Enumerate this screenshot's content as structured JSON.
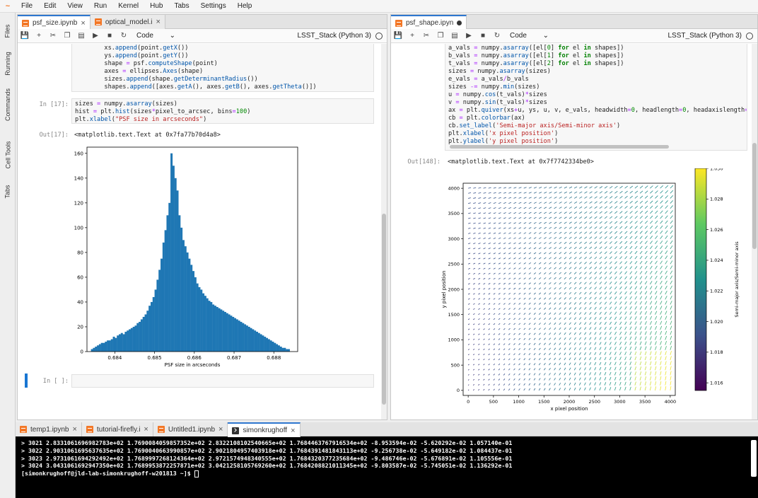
{
  "menubar": {
    "items": [
      "File",
      "Edit",
      "View",
      "Run",
      "Kernel",
      "Hub",
      "Tabs",
      "Settings",
      "Help"
    ]
  },
  "sidebar": {
    "tabs": [
      "Files",
      "Running",
      "Commands",
      "Cell Tools",
      "Tabs"
    ]
  },
  "left_panel": {
    "tabs": [
      {
        "label": "psf_size.ipynb",
        "close": "×"
      },
      {
        "label": "optical_model.i",
        "close": "×"
      }
    ],
    "toolbar": {
      "cell_type": "Code",
      "kernel": "LSST_Stack (Python 3)"
    },
    "cell1_code": [
      "        xs.append(point.getX())",
      "        ys.append(point.getY())",
      "        shape = psf.computeShape(point)",
      "        axes = ellipses.Axes(shape)",
      "        sizes.append(shape.getDeterminantRadius())",
      "        shapes.append([axes.getA(), axes.getB(), axes.getTheta()])"
    ],
    "cell2_prompt": "In [17]:",
    "cell2_code": [
      "sizes = numpy.asarray(sizes)",
      "hist = plt.hist(sizes*pixel_to_arcsec, bins=100)",
      "plt.xlabel(\"PSF size in arcseconds\")"
    ],
    "out2_prompt": "Out[17]:",
    "out2_text": "<matplotlib.text.Text at 0x7fa77b70d4a8>",
    "empty_prompt": "In [ ]:"
  },
  "right_panel": {
    "tabs": [
      {
        "label": "psf_shape.ipyn"
      }
    ],
    "toolbar": {
      "cell_type": "Code",
      "kernel": "LSST_Stack (Python 3)"
    },
    "cell_code": [
      "a_vals = numpy.asarray([el[0] for el in shapes])",
      "b_vals = numpy.asarray([el[1] for el in shapes])",
      "t_vals = numpy.asarray([el[2] for el in shapes])",
      "sizes = numpy.asarray(sizes)",
      "e_vals = a_vals/b_vals",
      "sizes -= numpy.min(sizes)",
      "u = numpy.cos(t_vals)*sizes",
      "v = numpy.sin(t_vals)*sizes",
      "ax = plt.quiver(xs+u, ys, u, v, e_vals, headwidth=0, headlength=0, headaxislength=",
      "cb = plt.colorbar(ax)",
      "cb.set_label('Semi-major axis/Semi-minor axis')",
      "plt.xlabel('x pixel position')",
      "plt.ylabel('y pixel position')"
    ],
    "out_prompt": "Out[148]:",
    "out_text": "<matplotlib.text.Text at 0x7f7742334be0>"
  },
  "terminal": {
    "tabs": [
      {
        "label": "temp1.ipynb",
        "close": "×"
      },
      {
        "label": "tutorial-firefly.i",
        "close": "×"
      },
      {
        "label": "Untitled1.ipynb",
        "close": "×"
      },
      {
        "label": "simonkrughoff",
        "close": "×"
      }
    ],
    "lines": [
      "> 3021 2.8331061696982783e+02 1.7690084059857352e+02 2.8322108102540665e+02 1.7684463767916534e+02 -8.953594e-02 -5.620292e-02 1.057140e-01",
      "> 3022 2.9031061695637635e+02 1.7690040663990857e+02 2.9021804957403918e+02 1.7684391481843113e+02 -9.256738e-02 -5.649182e-02 1.084437e-01",
      "> 3023 2.9731061694292492e+02 1.7689997268124364e+02 2.9721574948340555e+02 1.7684320377235684e+02 -9.486746e-02 -5.676891e-02 1.105556e-01",
      "> 3024 3.0431061692947350e+02 1.7689953872257871e+02 3.0421258105769260e+02 1.7684208821011345e+02 -9.803587e-02 -5.745051e-02 1.136292e-01"
    ],
    "prompt": "[simonkrughoff@jld-lab-simonkrughoff-w201813 ~]$ "
  },
  "chart_data": [
    {
      "type": "bar",
      "title": "",
      "xlabel": "PSF size in arcseconds",
      "ylabel": "",
      "xlim": [
        0.6833,
        0.6886
      ],
      "ylim": [
        0,
        165
      ],
      "xticks": [
        0.684,
        0.685,
        0.686,
        0.687,
        0.688
      ],
      "xtick_labels": [
        "0.684",
        "0.685",
        "0.686",
        "0.687",
        "0.688"
      ],
      "yticks": [
        0,
        20,
        40,
        60,
        80,
        100,
        120,
        140,
        160
      ],
      "bin_start": 0.6834,
      "bin_width": 5e-05,
      "values": [
        2,
        3,
        4,
        5,
        6,
        7,
        7,
        8,
        9,
        9,
        10,
        12,
        11,
        13,
        14,
        15,
        14,
        16,
        17,
        18,
        19,
        20,
        21,
        23,
        24,
        26,
        28,
        30,
        33,
        37,
        40,
        44,
        50,
        58,
        66,
        75,
        88,
        98,
        110,
        120,
        160,
        150,
        140,
        130,
        110,
        100,
        90,
        85,
        80,
        75,
        70,
        65,
        60,
        55,
        52,
        50,
        47,
        45,
        43,
        41,
        40,
        38,
        37,
        36,
        35,
        34,
        33,
        32,
        31,
        30,
        29,
        28,
        27,
        26,
        25,
        24,
        23,
        22,
        21,
        20,
        19,
        18,
        17,
        16,
        15,
        14,
        13,
        12,
        11,
        10,
        9,
        8,
        7,
        6,
        5,
        4,
        3,
        3,
        2,
        2
      ],
      "color": "#1f77b4"
    },
    {
      "type": "quiver",
      "title": "",
      "xlabel": "x pixel position",
      "ylabel": "y pixel position",
      "xlim": [
        -100,
        4100
      ],
      "ylim": [
        -100,
        4100
      ],
      "xticks": [
        0,
        500,
        1000,
        1500,
        2000,
        2500,
        3000,
        3500,
        4000
      ],
      "xtick_labels": [
        "0",
        "500",
        "1000",
        "1500",
        "2000",
        "2500",
        "3000",
        "3500",
        "4000"
      ],
      "yticks": [
        0,
        500,
        1000,
        1500,
        2000,
        2500,
        3000,
        3500,
        4000
      ],
      "ytick_labels": [
        "0",
        "500",
        "1000",
        "1500",
        "2000",
        "2500",
        "3000",
        "3500",
        "4000"
      ],
      "grid_step": 100,
      "colorbar": {
        "label": "Semi-major axis/Semi-minor axis",
        "range": [
          1.0155,
          1.03
        ],
        "ticks": [
          1.016,
          1.018,
          1.02,
          1.022,
          1.024,
          1.026,
          1.028,
          1.03
        ],
        "tick_labels": [
          "1.016",
          "1.018",
          "1.020",
          "1.022",
          "1.024",
          "1.026",
          "1.028",
          "1.030"
        ],
        "colors": [
          "#440154",
          "#3b528b",
          "#21918c",
          "#5ec962",
          "#fde725"
        ]
      }
    }
  ]
}
